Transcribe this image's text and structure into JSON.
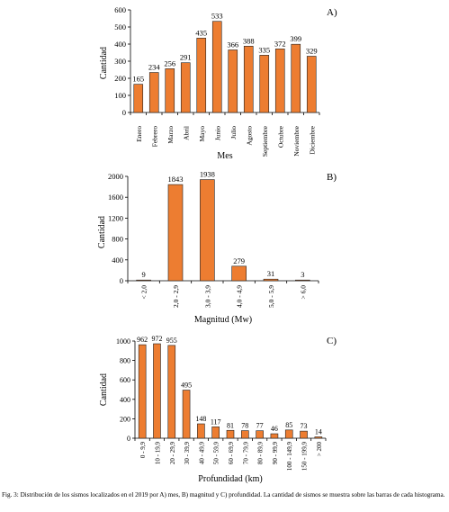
{
  "caption": "Fig. 3: Distribución de los sismos localizados en el 2019 por A) mes, B) magnitud y C) profundidad. La cantidad de sismos se muestra sobre las barras de cada histograma.",
  "bar_color": "#ED7D31",
  "chart_data": [
    {
      "type": "bar",
      "panel_label": "A)",
      "xlabel": "Mes",
      "ylabel": "Cantidad",
      "ylim": [
        0,
        600
      ],
      "yticks": [
        0,
        100,
        200,
        300,
        400,
        500,
        600
      ],
      "categories": [
        "Enero",
        "Febrero",
        "Marzo",
        "Abril",
        "Mayo",
        "Junio",
        "Julio",
        "Agosto",
        "Septiembre",
        "Octubre",
        "Noviembre",
        "Diciembre"
      ],
      "values": [
        165,
        234,
        256,
        291,
        435,
        533,
        366,
        388,
        335,
        372,
        399,
        329
      ],
      "data_labels": true
    },
    {
      "type": "bar",
      "panel_label": "B)",
      "xlabel": "Magnitud  (Mw)",
      "ylabel": "Cantidad",
      "ylim": [
        0,
        2000
      ],
      "yticks": [
        0,
        400,
        800,
        1200,
        1600,
        2000
      ],
      "categories": [
        "< 2,0",
        "2,0 - 2,9",
        "3,0 - 3,9",
        "4,0 - 4,9",
        "5,0 - 5,9",
        "> 6,0"
      ],
      "values": [
        9,
        1843,
        1938,
        279,
        31,
        3
      ],
      "data_labels": true
    },
    {
      "type": "bar",
      "panel_label": "C)",
      "xlabel": "Profundidad (km)",
      "ylabel": "Cantidad",
      "ylim": [
        0,
        1000
      ],
      "yticks": [
        0,
        200,
        400,
        600,
        800,
        1000
      ],
      "categories": [
        "0 - 9,9",
        "10 - 19,9",
        "20 - 29,9",
        "30 - 39,9",
        "40 - 49,9",
        "50 - 59,9",
        "60 - 69,9",
        "70 - 79,9",
        "80 - 89,9",
        "90 - 99,9",
        "100 - 149,9",
        "150 - 199,9",
        "> 200"
      ],
      "values": [
        962,
        972,
        955,
        495,
        148,
        117,
        81,
        78,
        77,
        46,
        85,
        73,
        14
      ],
      "data_labels": true
    }
  ]
}
